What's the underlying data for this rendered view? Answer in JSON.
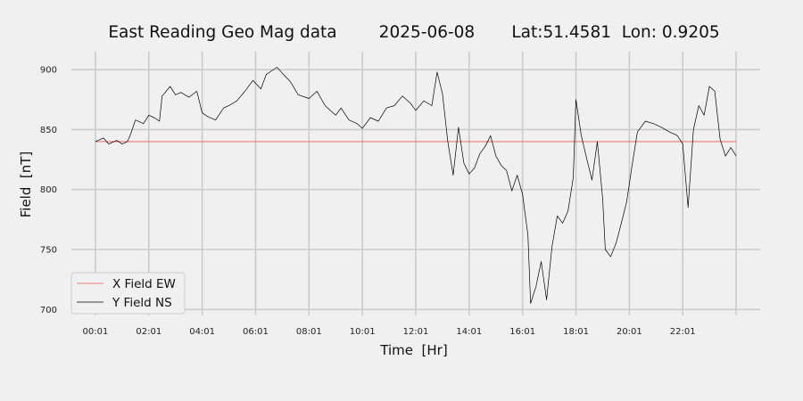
{
  "chart_data": {
    "type": "line",
    "title": "East Reading Geo Mag data        2025-06-08       Lat:51.4581  Lon: 0.9205",
    "xlabel": "Time  [Hr]",
    "ylabel": "Field  [nT]",
    "x_tick_labels": [
      "00:01",
      "02:01",
      "04:01",
      "06:01",
      "08:01",
      "10:01",
      "12:01",
      "14:01",
      "16:01",
      "18:01",
      "20:01",
      "22:01",
      ""
    ],
    "x_tick_hours": [
      0,
      2,
      4,
      6,
      8,
      10,
      12,
      14,
      16,
      18,
      20,
      22,
      24
    ],
    "xlim": [
      -0.9,
      24.9
    ],
    "ylim": [
      695,
      915
    ],
    "y_ticks": [
      700,
      750,
      800,
      850,
      900
    ],
    "grid": true,
    "legend_position": "lower-left",
    "colors": {
      "background": "#f0f0f0",
      "grid": "#cbcbcb",
      "x_series": "#e8594f",
      "y_series": "#000000"
    },
    "series": [
      {
        "name": "X Field EW",
        "x": [
          0,
          24
        ],
        "values": [
          840,
          840
        ]
      },
      {
        "name": "Y Field NS",
        "x": [
          0,
          0.3,
          0.5,
          0.8,
          1.0,
          1.2,
          1.3,
          1.5,
          1.8,
          2.0,
          2.2,
          2.4,
          2.5,
          2.8,
          3.0,
          3.2,
          3.5,
          3.8,
          4.0,
          4.2,
          4.5,
          4.8,
          5.0,
          5.3,
          5.6,
          5.9,
          6.2,
          6.4,
          6.6,
          6.8,
          7.0,
          7.3,
          7.6,
          8.0,
          8.3,
          8.6,
          9.0,
          9.2,
          9.5,
          9.8,
          10.0,
          10.3,
          10.6,
          10.9,
          11.2,
          11.5,
          11.8,
          12.0,
          12.3,
          12.6,
          12.8,
          13.0,
          13.2,
          13.4,
          13.6,
          13.8,
          14.0,
          14.2,
          14.4,
          14.6,
          14.8,
          15.0,
          15.2,
          15.4,
          15.6,
          15.8,
          16.0,
          16.2,
          16.3,
          16.5,
          16.7,
          16.9,
          17.1,
          17.3,
          17.5,
          17.7,
          17.9,
          18.0,
          18.2,
          18.4,
          18.6,
          18.8,
          19.0,
          19.1,
          19.3,
          19.5,
          19.7,
          19.9,
          20.1,
          20.3,
          20.6,
          20.9,
          21.2,
          21.5,
          21.8,
          22.0,
          22.2,
          22.4,
          22.6,
          22.8,
          23.0,
          23.2,
          23.4,
          23.6,
          23.8,
          24.0
        ],
        "values": [
          840,
          843,
          838,
          841,
          838,
          840,
          845,
          858,
          855,
          862,
          860,
          857,
          878,
          886,
          879,
          881,
          877,
          882,
          864,
          861,
          858,
          868,
          870,
          874,
          882,
          891,
          884,
          896,
          899,
          902,
          897,
          890,
          879,
          876,
          882,
          870,
          862,
          868,
          858,
          855,
          851,
          860,
          857,
          868,
          870,
          878,
          872,
          866,
          874,
          870,
          898,
          880,
          840,
          812,
          852,
          822,
          813,
          818,
          830,
          836,
          845,
          828,
          820,
          816,
          799,
          812,
          796,
          762,
          705,
          719,
          740,
          708,
          752,
          778,
          772,
          782,
          810,
          875,
          845,
          826,
          808,
          840,
          792,
          750,
          744,
          755,
          772,
          790,
          820,
          848,
          857,
          855,
          852,
          848,
          845,
          838,
          785,
          850,
          870,
          862,
          886,
          882,
          842,
          828,
          835,
          828
        ]
      }
    ]
  }
}
